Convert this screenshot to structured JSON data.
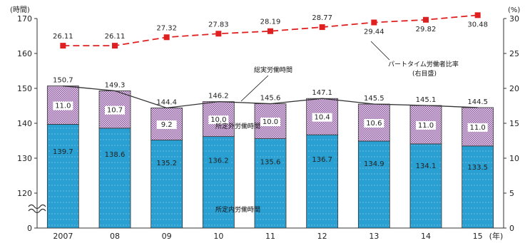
{
  "chart_data": {
    "type": "bar",
    "title": "",
    "left_axis_unit": "(時間)",
    "right_axis_unit": "(%)",
    "year_unit": "(年)",
    "categories": [
      "2007",
      "08",
      "09",
      "10",
      "11",
      "12",
      "13",
      "14",
      "15"
    ],
    "ylim": [
      0,
      170
    ],
    "yticks": [
      0,
      120,
      130,
      140,
      150,
      160,
      170
    ],
    "y2lim": [
      0,
      30
    ],
    "y2ticks": [
      0,
      5,
      10,
      15,
      20,
      25,
      30
    ],
    "axis_break": true,
    "series": [
      {
        "name": "所定内労働時間",
        "type": "bar-stacked",
        "color": "#2aa0d2",
        "values": [
          139.7,
          138.6,
          135.2,
          136.2,
          135.6,
          136.7,
          134.9,
          134.1,
          133.5
        ],
        "labels": [
          "139.7",
          "138.6",
          "135.2",
          "136.2",
          "135.6",
          "136.7",
          "134.9",
          "134.1",
          "133.5"
        ]
      },
      {
        "name": "所定外労働時間",
        "type": "bar-stacked",
        "color": "#c9a7cf",
        "values": [
          11.0,
          10.7,
          9.2,
          10.0,
          10.0,
          10.4,
          10.6,
          11.0,
          11.0
        ],
        "labels": [
          "11.0",
          "10.7",
          "9.2",
          "10.0",
          "10.0",
          "10.4",
          "10.6",
          "11.0",
          "11.0"
        ]
      },
      {
        "name": "総実労働時間",
        "type": "line",
        "color": "#333333",
        "values": [
          150.7,
          149.3,
          144.4,
          146.2,
          145.6,
          147.1,
          145.5,
          145.1,
          144.5
        ],
        "labels": [
          "150.7",
          "149.3",
          "144.4",
          "146.2",
          "145.6",
          "147.1",
          "145.5",
          "145.1",
          "144.5"
        ]
      },
      {
        "name": "パートタイム労働者比率",
        "type": "line",
        "axis": "right",
        "color": "#e02020",
        "values": [
          26.11,
          26.11,
          27.32,
          27.83,
          28.19,
          28.77,
          29.44,
          29.82,
          30.48
        ],
        "labels": [
          "26.11",
          "26.11",
          "27.32",
          "27.83",
          "28.19",
          "28.77",
          "29.44",
          "29.82",
          "30.48"
        ]
      }
    ],
    "annotations": {
      "total": "総実労働時間",
      "overtime": "所定外労働時間",
      "scheduled": "所定内労働時間",
      "part_ratio_line1": "パートタイム労働者比率",
      "part_ratio_line2": "(右目盛)"
    }
  }
}
